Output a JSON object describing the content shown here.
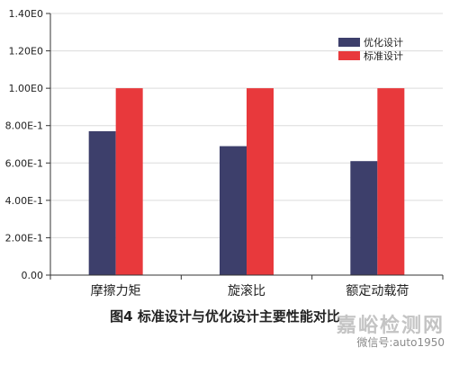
{
  "chart_data": {
    "type": "bar",
    "categories": [
      "摩擦力矩",
      "旋滚比",
      "额定动载荷"
    ],
    "series": [
      {
        "name": "优化设计",
        "color": "#3d3f6b",
        "values": [
          0.77,
          0.69,
          0.61
        ]
      },
      {
        "name": "标准设计",
        "color": "#e8393c",
        "values": [
          1.0,
          1.0,
          1.0
        ]
      }
    ],
    "ylim": [
      0,
      1.4
    ],
    "yticks": [
      0,
      0.2,
      0.4,
      0.6,
      0.8,
      1.0,
      1.2,
      1.4
    ],
    "ytick_labels": [
      "0.00",
      "2.00E-1",
      "4.00E-1",
      "6.00E-1",
      "8.00E-1",
      "1.00E0",
      "1.20E0",
      "1.40E0"
    ],
    "grid": true,
    "legend_position": "top-right",
    "title": "",
    "xlabel": "",
    "ylabel": ""
  },
  "caption": "图4   标准设计与优化设计主要性能对比",
  "watermark": {
    "title": "嘉峪检测网",
    "subtitle": "微信号:auto1950"
  }
}
